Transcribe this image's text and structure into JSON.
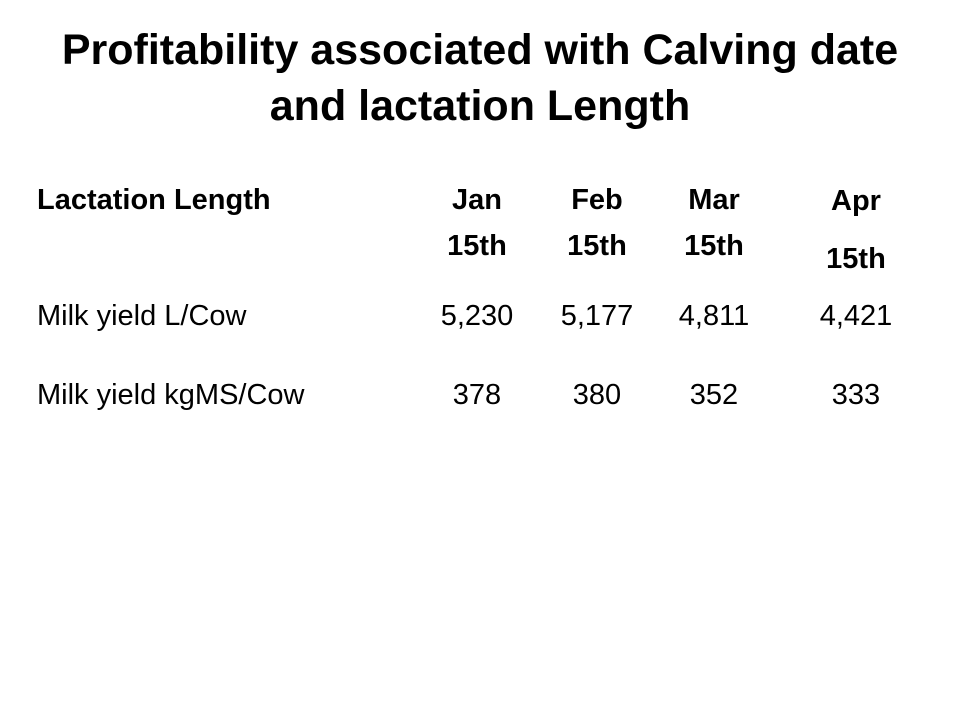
{
  "title": "Profitability associated with Calving date and lactation Length",
  "table": {
    "header": [
      "Lactation Length",
      "Jan 15th",
      "Feb 15th",
      "Mar 15th",
      "Apr 15th"
    ],
    "rows": [
      [
        "Milk yield L/Cow",
        "5,230",
        "5,177",
        "4,811",
        "4,421"
      ],
      [
        "Milk yield kgMS/Cow",
        "378",
        "380",
        "352",
        "333"
      ]
    ]
  }
}
